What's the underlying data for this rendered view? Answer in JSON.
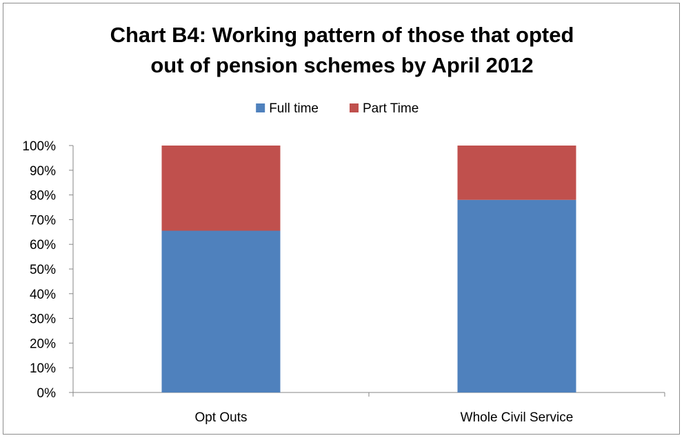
{
  "chart_data": {
    "type": "bar",
    "stacked": true,
    "percent": true,
    "title_lines": [
      "Chart B4: Working pattern of those that opted",
      "out of pension schemes by April 2012"
    ],
    "categories": [
      "Opt Outs",
      "Whole Civil Service"
    ],
    "series": [
      {
        "name": "Full time",
        "color": "#4f81bd",
        "values": [
          65.5,
          78
        ]
      },
      {
        "name": "Part Time",
        "color": "#c0504d",
        "values": [
          34.5,
          22
        ]
      }
    ],
    "ylim": [
      0,
      100
    ],
    "yticks": [
      "0%",
      "10%",
      "20%",
      "30%",
      "40%",
      "50%",
      "60%",
      "70%",
      "80%",
      "90%",
      "100%"
    ],
    "grid": false,
    "legend_position": "top"
  }
}
